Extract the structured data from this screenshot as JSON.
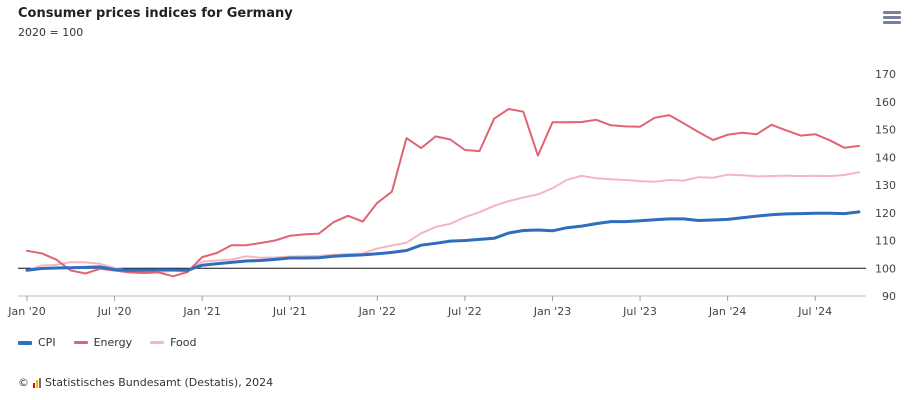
{
  "header": {
    "title": "Consumer prices indices for Germany",
    "subtitle": "2020 = 100",
    "menu_icon": "hamburger-menu-icon"
  },
  "footer": {
    "copyright_symbol": "©",
    "credit": "Statistisches Bundesamt (Destatis), 2024",
    "logo_colors": [
      "#e2001a",
      "#f2b800",
      "#6f6f6f"
    ]
  },
  "chart_data": {
    "type": "line",
    "title": "Consumer prices indices for Germany",
    "subtitle": "2020 = 100",
    "xlabel": "",
    "ylabel": "",
    "ylim": [
      90,
      170
    ],
    "yticks": [
      90,
      100,
      110,
      120,
      130,
      140,
      150,
      160,
      170
    ],
    "y_axis_side": "right",
    "reference_line": 100,
    "x_start": "2020-01",
    "x_end": "2024-10",
    "xticks": [
      {
        "month": "2020-01",
        "label": "Jan '20"
      },
      {
        "month": "2020-07",
        "label": "Jul '20"
      },
      {
        "month": "2021-01",
        "label": "Jan '21"
      },
      {
        "month": "2021-07",
        "label": "Jul '21"
      },
      {
        "month": "2022-01",
        "label": "Jan '22"
      },
      {
        "month": "2022-07",
        "label": "Jul '22"
      },
      {
        "month": "2023-01",
        "label": "Jan '23"
      },
      {
        "month": "2023-07",
        "label": "Jul '23"
      },
      {
        "month": "2024-01",
        "label": "Jan '24"
      },
      {
        "month": "2024-07",
        "label": "Jul '24"
      }
    ],
    "legend_position": "bottom-left",
    "grid": false,
    "series": [
      {
        "name": "CPI",
        "color": "#2f6ebd",
        "values": [
          99.3,
          99.9,
          100.1,
          100.2,
          100.3,
          100.5,
          99.5,
          99.3,
          99.3,
          99.4,
          99.4,
          99.3,
          101.1,
          101.6,
          102.1,
          102.6,
          102.8,
          103.2,
          103.7,
          103.7,
          103.8,
          104.3,
          104.6,
          104.8,
          105.2,
          105.7,
          106.4,
          108.3,
          109.0,
          109.8,
          110.0,
          110.4,
          110.8,
          112.7,
          113.6,
          113.8,
          113.5,
          114.6,
          115.2,
          116.1,
          116.8,
          116.8,
          117.1,
          117.5,
          117.8,
          117.8,
          117.2,
          117.4,
          117.6,
          118.2,
          118.8,
          119.3,
          119.6,
          119.7,
          119.8,
          119.8,
          119.7,
          120.3
        ]
      },
      {
        "name": "Energy",
        "color": "#e06474",
        "values": [
          106.3,
          105.4,
          103.1,
          99.2,
          98.1,
          99.8,
          99.2,
          98.5,
          98.3,
          98.5,
          97.1,
          98.6,
          104.0,
          105.5,
          108.3,
          108.3,
          109.1,
          110.0,
          111.7,
          112.2,
          112.5,
          116.6,
          118.9,
          116.8,
          123.6,
          127.6,
          146.9,
          143.3,
          147.5,
          146.4,
          142.6,
          142.2,
          153.9,
          157.4,
          156.4,
          140.6,
          152.6,
          152.6,
          152.7,
          153.5,
          151.5,
          151.1,
          151.0,
          154.2,
          155.2,
          152.2,
          149.1,
          146.2,
          148.1,
          148.8,
          148.3,
          151.7,
          149.7,
          147.8,
          148.3,
          146.1,
          143.4,
          144.1
        ]
      },
      {
        "name": "Food",
        "color": "#f4b6c2",
        "values": [
          99.2,
          101.0,
          101.2,
          102.2,
          102.1,
          101.6,
          100.1,
          99.2,
          98.8,
          98.5,
          99.1,
          98.7,
          102.4,
          102.8,
          103.1,
          104.3,
          103.8,
          103.9,
          104.2,
          104.3,
          104.4,
          104.9,
          105.1,
          105.3,
          107.1,
          108.2,
          109.2,
          112.6,
          114.9,
          116.0,
          118.4,
          120.2,
          122.5,
          124.2,
          125.5,
          126.6,
          128.8,
          131.9,
          133.3,
          132.4,
          132.1,
          131.8,
          131.4,
          131.2,
          131.8,
          131.6,
          132.8,
          132.6,
          133.7,
          133.5,
          133.1,
          133.2,
          133.4,
          133.2,
          133.3,
          133.2,
          133.6,
          134.6
        ]
      }
    ]
  }
}
